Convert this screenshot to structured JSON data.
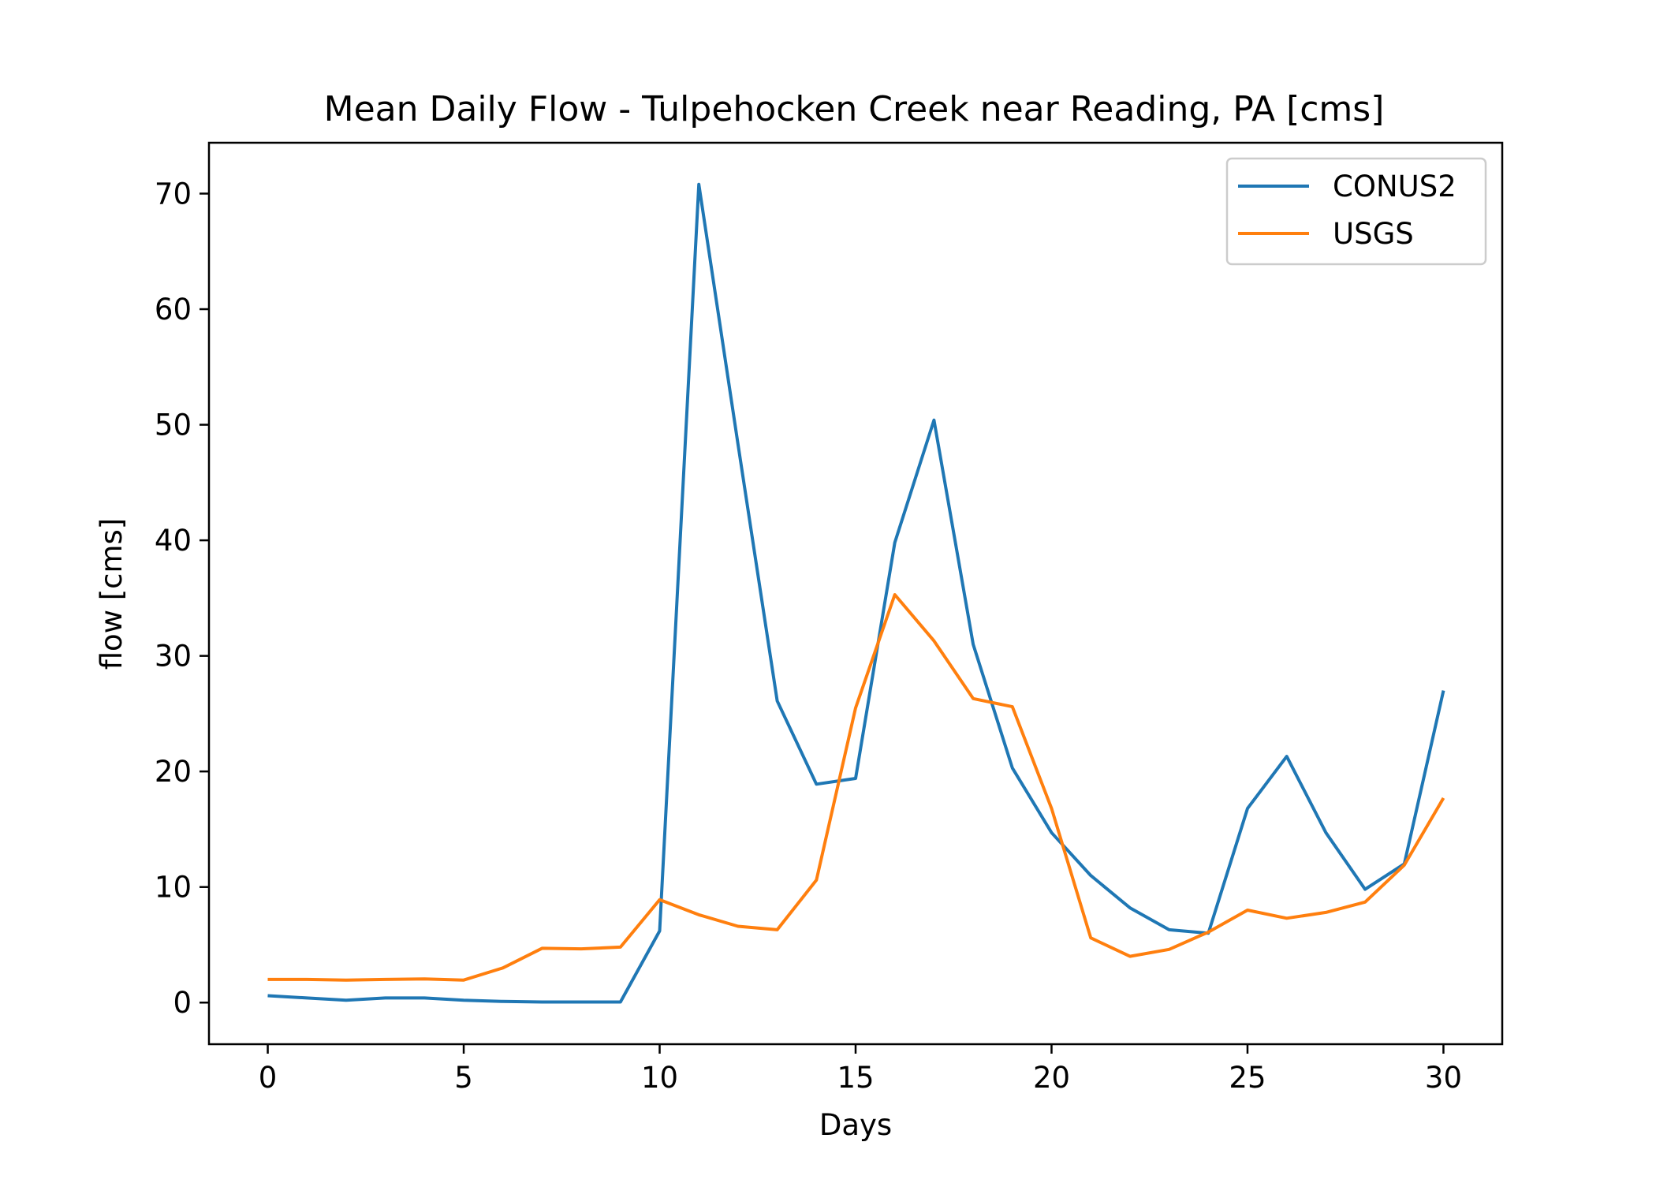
{
  "chart_data": {
    "type": "line",
    "title": "Mean Daily Flow - Tulpehocken Creek near Reading, PA [cms]",
    "xlabel": "Days",
    "ylabel": "flow [cms]",
    "xlim": [
      -1.5,
      31.5
    ],
    "ylim": [
      -3.6,
      74.4
    ],
    "xticks": [
      0,
      5,
      10,
      15,
      20,
      25,
      30
    ],
    "yticks": [
      0,
      10,
      20,
      30,
      40,
      50,
      60,
      70
    ],
    "grid": false,
    "legend_position": "top-right",
    "x": [
      0,
      1,
      2,
      3,
      4,
      5,
      6,
      7,
      8,
      9,
      10,
      11,
      12,
      13,
      14,
      15,
      16,
      17,
      18,
      19,
      20,
      21,
      22,
      23,
      24,
      25,
      26,
      27,
      28,
      29,
      30
    ],
    "series": [
      {
        "name": "CONUS2",
        "color": "#1f77b4",
        "values": [
          0.6,
          0.4,
          0.2,
          0.4,
          0.4,
          0.2,
          0.1,
          0.05,
          0.05,
          0.05,
          6.2,
          70.8,
          48.3,
          26.1,
          18.9,
          19.4,
          39.8,
          50.4,
          31.0,
          20.3,
          14.7,
          11.0,
          8.2,
          6.3,
          6.0,
          16.8,
          21.3,
          14.7,
          9.8,
          12.0,
          27.0
        ]
      },
      {
        "name": "USGS",
        "color": "#ff7f0e",
        "values": [
          2.0,
          2.0,
          1.95,
          2.0,
          2.05,
          1.95,
          3.0,
          4.7,
          4.65,
          4.8,
          8.9,
          7.6,
          6.6,
          6.3,
          10.6,
          25.5,
          35.3,
          31.3,
          26.3,
          25.6,
          16.8,
          5.6,
          4.0,
          4.6,
          6.1,
          8.0,
          7.3,
          7.8,
          8.7,
          11.9,
          17.7
        ]
      }
    ]
  }
}
